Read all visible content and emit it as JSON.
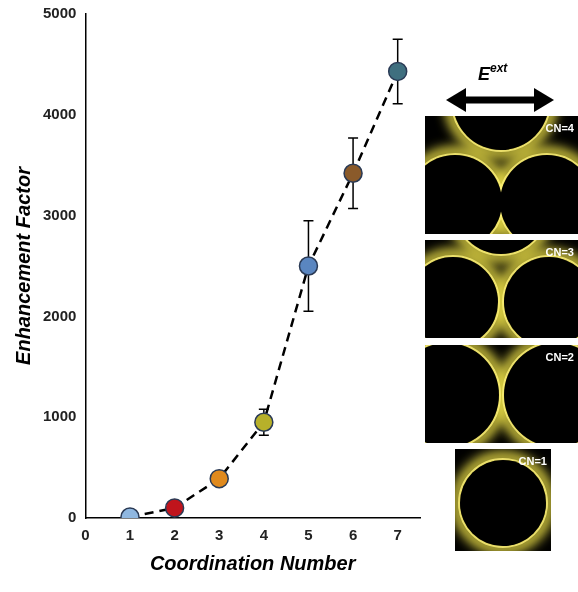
{
  "chart_data": {
    "type": "scatter",
    "x_label": "Coordination Number",
    "y_label": "Enhancement Factor",
    "x": [
      1,
      2,
      3,
      4,
      5,
      6,
      7
    ],
    "values": [
      10,
      100,
      390,
      950,
      2500,
      3420,
      4430
    ],
    "errors": [
      null,
      null,
      null,
      130,
      450,
      350,
      320
    ],
    "colors": [
      "#8fb7e0",
      "#c0141c",
      "#e08a1e",
      "#b7b02a",
      "#5a86c0",
      "#8a5a2a",
      "#3f6f7f"
    ],
    "marker": "circle",
    "line_style": "dashed",
    "xlim": [
      0,
      7.5
    ],
    "xticks": [
      0,
      1,
      2,
      3,
      4,
      5,
      6,
      7
    ],
    "ylim": [
      0,
      5000
    ],
    "yticks": [
      0,
      1000,
      2000,
      3000,
      4000,
      5000
    ],
    "grid": false,
    "annotations": [
      {
        "text": "E",
        "superscript": "ext"
      },
      {
        "text": "CN=4"
      },
      {
        "text": "CN=3"
      },
      {
        "text": "CN=2"
      },
      {
        "text": "CN=1"
      }
    ]
  }
}
